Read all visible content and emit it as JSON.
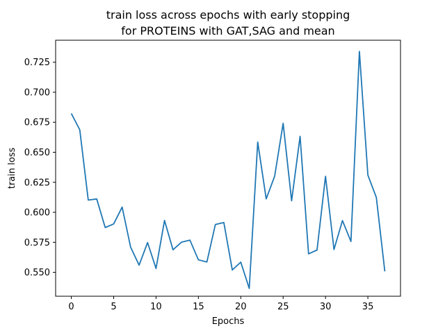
{
  "chart_data": {
    "type": "line",
    "title_line1": "train loss across epochs with early stopping",
    "title_line2": "for PROTEINS with GAT,SAG and mean",
    "xlabel": "Epochs",
    "ylabel": "train loss",
    "xlim": [
      -1.85,
      38.85
    ],
    "ylim": [
      0.5301,
      0.7433
    ],
    "grid": false,
    "legend": "none",
    "line_color": "#1f77b4",
    "x_ticks": [
      0,
      5,
      10,
      15,
      20,
      25,
      30,
      35
    ],
    "y_ticks": [
      0.55,
      0.575,
      0.6,
      0.625,
      0.65,
      0.675,
      0.7,
      0.725
    ],
    "x_tick_labels": [
      "0",
      "5",
      "10",
      "15",
      "20",
      "25",
      "30",
      "35"
    ],
    "y_tick_labels": [
      "0.550",
      "0.575",
      "0.600",
      "0.625",
      "0.650",
      "0.675",
      "0.700",
      "0.725"
    ],
    "x": [
      0,
      1,
      2,
      3,
      4,
      5,
      6,
      7,
      8,
      9,
      10,
      11,
      12,
      13,
      14,
      15,
      16,
      17,
      18,
      19,
      20,
      21,
      22,
      23,
      24,
      25,
      26,
      27,
      28,
      29,
      30,
      31,
      32,
      33,
      34,
      35,
      36,
      37
    ],
    "y": [
      0.6823,
      0.6687,
      0.6102,
      0.6111,
      0.5873,
      0.5903,
      0.6043,
      0.571,
      0.556,
      0.5748,
      0.5532,
      0.5932,
      0.5688,
      0.5751,
      0.5768,
      0.5604,
      0.5586,
      0.5898,
      0.5915,
      0.552,
      0.5585,
      0.5366,
      0.6585,
      0.6112,
      0.6301,
      0.6741,
      0.6096,
      0.6633,
      0.5654,
      0.5686,
      0.63,
      0.569,
      0.5931,
      0.5757,
      0.734,
      0.631,
      0.6123,
      0.5508
    ]
  }
}
